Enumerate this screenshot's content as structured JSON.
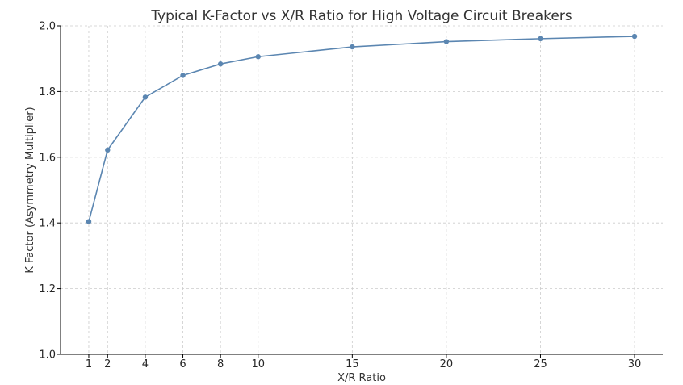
{
  "chart_data": {
    "type": "line",
    "title": "Typical K-Factor vs X/R Ratio for High Voltage Circuit Breakers",
    "xlabel": "X/R Ratio",
    "ylabel": "K Factor (Asymmetry Multiplier)",
    "x": [
      1,
      2,
      4,
      6,
      8,
      10,
      15,
      20,
      25,
      30
    ],
    "series": [
      {
        "values": [
          1.404,
          1.622,
          1.783,
          1.849,
          1.884,
          1.906,
          1.936,
          1.952,
          1.961,
          1.968
        ]
      }
    ],
    "xticks": [
      1,
      2,
      4,
      6,
      8,
      10,
      15,
      20,
      25,
      30
    ],
    "yticks": [
      "1.0",
      "1.2",
      "1.4",
      "1.6",
      "1.8",
      "2.0"
    ],
    "xlim": [
      -0.5,
      31.5
    ],
    "ylim": [
      1.0,
      2.0
    ],
    "grid": true,
    "colors": {
      "series": "#5b86b1",
      "grid": "#cccccc",
      "axis": "#000000"
    }
  }
}
